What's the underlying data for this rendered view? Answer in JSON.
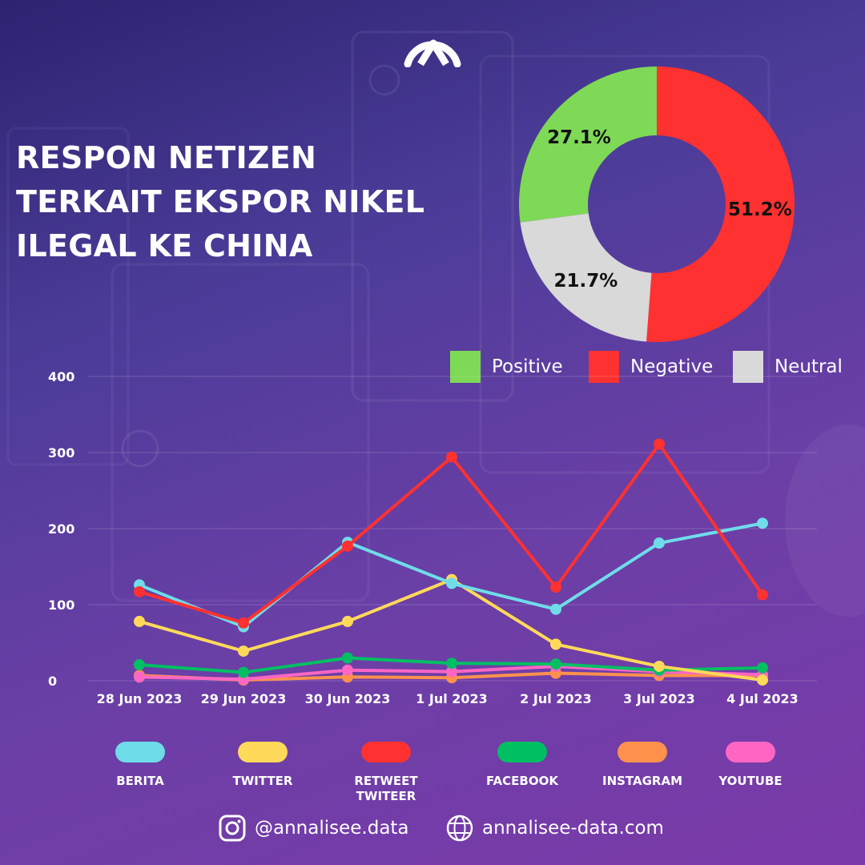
{
  "header": {
    "title_lines": [
      "RESPON NETIZEN",
      "TERKAIT EKSPOR NIKEL",
      "ILEGAL KE CHINA"
    ],
    "logo_icon": "brand-peak-icon"
  },
  "chart_data": [
    {
      "type": "pie",
      "variant": "donut",
      "labels": [
        "Positive",
        "Negative",
        "Neutral"
      ],
      "values": [
        27.1,
        51.2,
        21.7
      ],
      "value_labels": [
        "27.1%",
        "51.2%",
        "21.7%"
      ],
      "colors": [
        "#7ed957",
        "#ff3131",
        "#d9d9d9"
      ],
      "legend_position": "bottom"
    },
    {
      "type": "line",
      "x": [
        "28 Jun 2023",
        "29 Jun 2023",
        "30 Jun 2023",
        "1 Jul 2023",
        "2 Jul 2023",
        "3 Jul 2023",
        "4 Jul 2023"
      ],
      "y_ticks": [
        "0",
        "100",
        "200",
        "300",
        "400"
      ],
      "ylim": [
        0,
        400
      ],
      "grid": true,
      "legend_position": "bottom",
      "series": [
        {
          "name": "BERITA",
          "color": "#6fdce9",
          "values": [
            126,
            71,
            182,
            128,
            94,
            181,
            207
          ]
        },
        {
          "name": "TWITTER",
          "color": "#ffd95a",
          "values": [
            78,
            39,
            78,
            133,
            48,
            19,
            1
          ]
        },
        {
          "name": "RETWEET\nTWITEER",
          "color": "#ff3131",
          "values": [
            117,
            76,
            177,
            294,
            123,
            311,
            113
          ]
        },
        {
          "name": "FACEBOOK",
          "color": "#00bf63",
          "values": [
            21,
            11,
            30,
            23,
            22,
            14,
            17
          ]
        },
        {
          "name": "INSTAGRAM",
          "color": "#ff914d",
          "values": [
            7,
            1,
            5,
            4,
            10,
            7,
            7
          ]
        },
        {
          "name": "YOUTUBE",
          "color": "#ff66c4",
          "values": [
            5,
            2,
            14,
            12,
            19,
            12,
            8
          ]
        }
      ]
    }
  ],
  "footer": {
    "instagram_handle": "@annalisee.data",
    "website": "annalisee-data.com",
    "instagram_icon": "instagram-icon",
    "web_icon": "globe-icon"
  }
}
